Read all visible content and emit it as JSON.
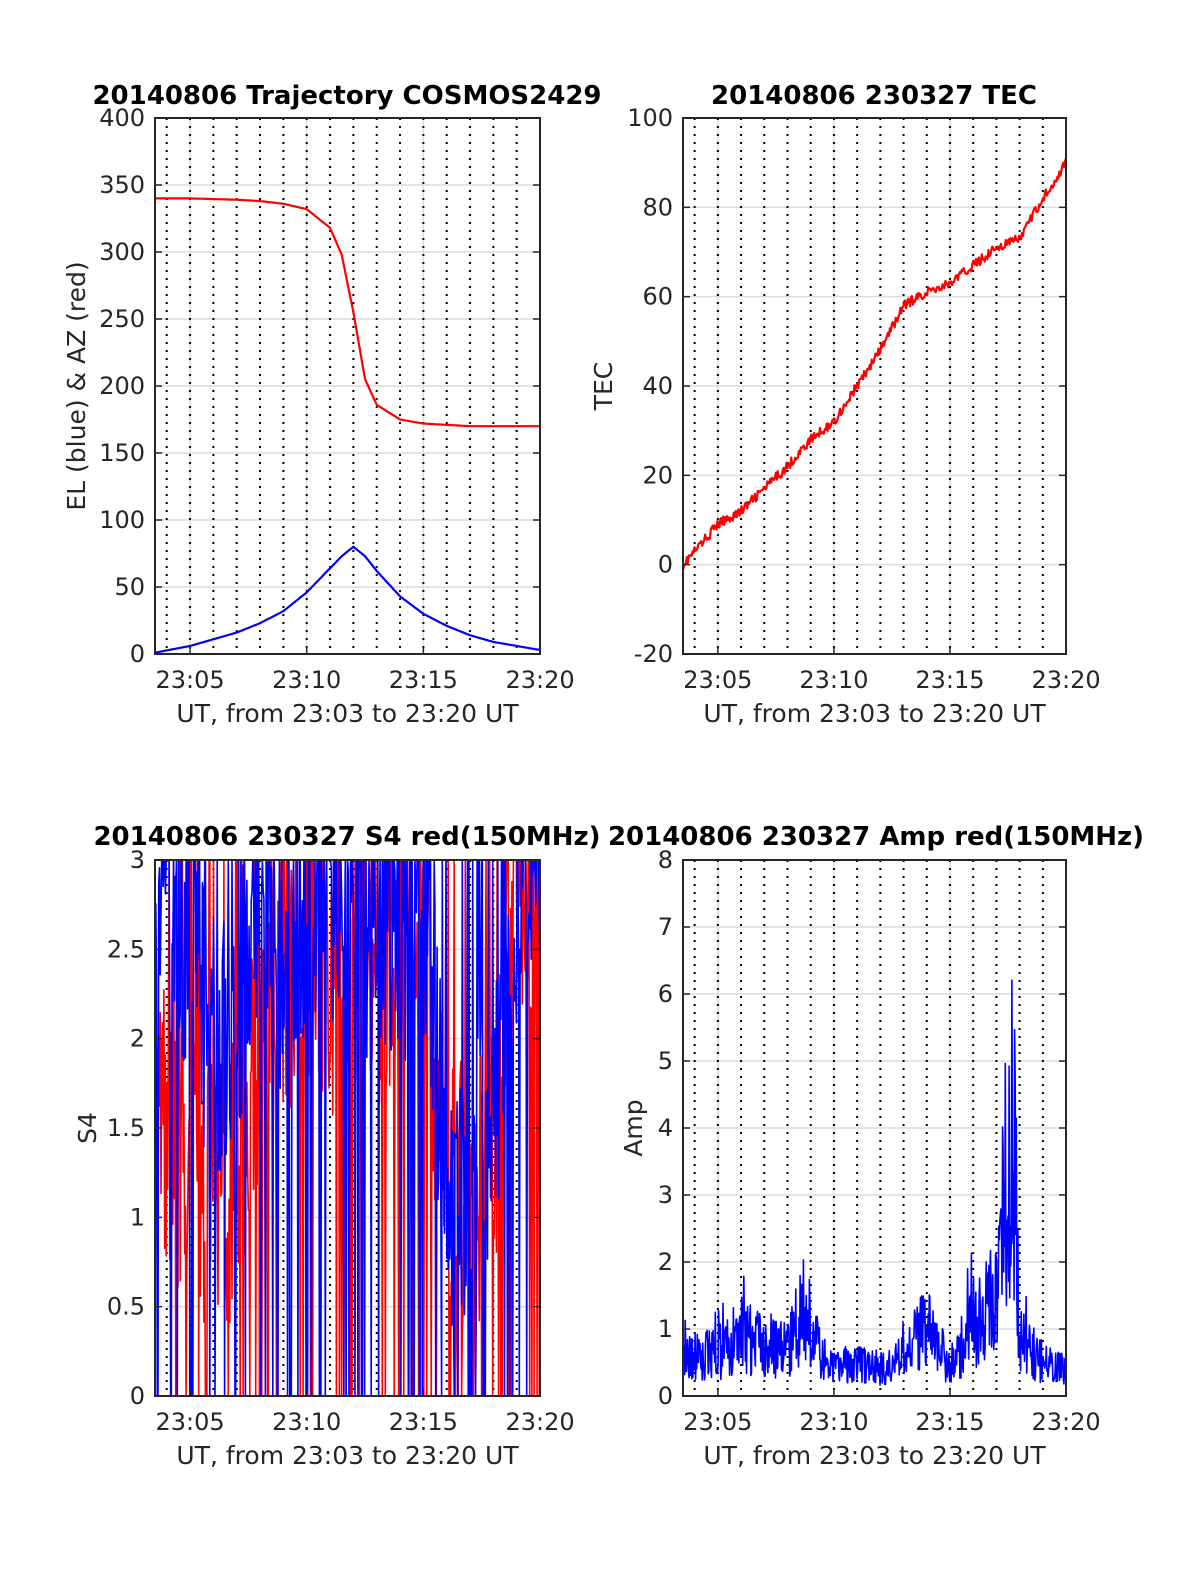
{
  "chart_data": [
    {
      "type": "line",
      "title": "20140806 Trajectory COSMOS2429",
      "xlabel": "UT, from 23:03 to 23:20 UT",
      "ylabel": "EL (blue) & AZ (red)",
      "xlim": [
        23.0583,
        23.3333
      ],
      "ylim": [
        0,
        400
      ],
      "x_ticks": [
        "23:05",
        "23:10",
        "23:15",
        "23:20"
      ],
      "y_ticks": [
        "0",
        "50",
        "100",
        "150",
        "200",
        "250",
        "300",
        "350",
        "400"
      ],
      "grid": true,
      "x": [
        "23:03.5",
        "23:05",
        "23:07",
        "23:08",
        "23:09",
        "23:10",
        "23:11",
        "23:11.5",
        "23:12",
        "23:12.5",
        "23:13",
        "23:14",
        "23:15",
        "23:16",
        "23:17",
        "23:18",
        "23:20"
      ],
      "series": [
        {
          "color": "#ff0000",
          "values": [
            340,
            340,
            339,
            338,
            336,
            332,
            318,
            298,
            255,
            205,
            186,
            175,
            172,
            171,
            170,
            170,
            170
          ]
        },
        {
          "color": "#0000ff",
          "values": [
            1,
            6,
            16,
            23,
            32,
            46,
            64,
            73,
            80,
            73,
            62,
            43,
            30,
            21,
            14,
            9,
            3
          ]
        }
      ]
    },
    {
      "type": "line",
      "title": "20140806 230327 TEC",
      "xlabel": "UT, from 23:03 to 23:20 UT",
      "ylabel": "TEC",
      "xlim": [
        23.0583,
        23.3333
      ],
      "ylim": [
        -20,
        100
      ],
      "x_ticks": [
        "23:05",
        "23:10",
        "23:15",
        "23:20"
      ],
      "y_ticks": [
        "-20",
        "0",
        "20",
        "40",
        "60",
        "80",
        "100"
      ],
      "grid": true,
      "x": [
        "23:03.5",
        "23:05",
        "23:06",
        "23:07",
        "23:08",
        "23:09",
        "23:10",
        "23:11",
        "23:12",
        "23:13",
        "23:14",
        "23:15",
        "23:16",
        "23:17",
        "23:18",
        "23:19",
        "23:20"
      ],
      "series": [
        {
          "color": "#ff0000",
          "values": [
            0,
            9,
            12,
            17,
            22,
            28,
            32,
            40,
            48,
            58,
            61,
            63,
            67,
            71,
            73,
            82,
            90
          ]
        }
      ]
    },
    {
      "type": "line",
      "title": "20140806 230327 S4 red(150MHz)",
      "xlabel": "UT, from 23:03 to 23:20 UT",
      "ylabel": "S4",
      "xlim": [
        23.0583,
        23.3333
      ],
      "ylim": [
        0,
        3
      ],
      "x_ticks": [
        "23:05",
        "23:10",
        "23:15",
        "23:20"
      ],
      "y_ticks": [
        "0",
        "0.5",
        "1",
        "1.5",
        "2",
        "2.5",
        "3"
      ],
      "grid": true,
      "x": [
        "23:03.5",
        "23:04",
        "23:05",
        "23:06",
        "23:07",
        "23:08",
        "23:09",
        "23:10",
        "23:11",
        "23:12",
        "23:13",
        "23:14",
        "23:15",
        "23:16",
        "23:17",
        "23:18",
        "23:19",
        "23:20"
      ],
      "series": [
        {
          "color": "#ff0000",
          "values": [
            1.9,
            1.5,
            1.3,
            1.1,
            1.2,
            2.0,
            2.3,
            2.6,
            2.2,
            2.5,
            2.4,
            2.6,
            2.3,
            1.3,
            1.1,
            1.4,
            2.8,
            3.0
          ]
        },
        {
          "color": "#0000ff",
          "values": [
            3.0,
            2.7,
            2.6,
            1.9,
            2.1,
            2.8,
            2.4,
            2.7,
            2.9,
            2.8,
            2.6,
            2.5,
            2.7,
            1.2,
            1.1,
            1.6,
            2.9,
            3.0
          ]
        }
      ]
    },
    {
      "type": "line",
      "title": "20140806 230327 Amp red(150MHz)",
      "xlabel": "UT, from 23:03 to 23:20 UT",
      "ylabel": "Amp",
      "xlim": [
        23.0583,
        23.3333
      ],
      "ylim": [
        0,
        8
      ],
      "x_ticks": [
        "23:05",
        "23:10",
        "23:15",
        "23:20"
      ],
      "y_ticks": [
        "0",
        "1",
        "2",
        "3",
        "4",
        "5",
        "6",
        "7",
        "8"
      ],
      "grid": true,
      "x": [
        "23:03.5",
        "23:05",
        "23:06",
        "23:07",
        "23:08",
        "23:08.5",
        "23:09",
        "23:10",
        "23:11",
        "23:12",
        "23:13",
        "23:14",
        "23:15",
        "23:16",
        "23:17",
        "23:17.7",
        "23:18",
        "23:19",
        "23:20"
      ],
      "series": [
        {
          "color": "#0000ff",
          "values": [
            0.8,
            0.9,
            1.3,
            1.1,
            1.0,
            1.6,
            1.2,
            0.6,
            0.7,
            0.6,
            0.8,
            1.5,
            0.6,
            1.6,
            2.0,
            6.3,
            1.2,
            0.7,
            0.6
          ]
        }
      ]
    }
  ]
}
